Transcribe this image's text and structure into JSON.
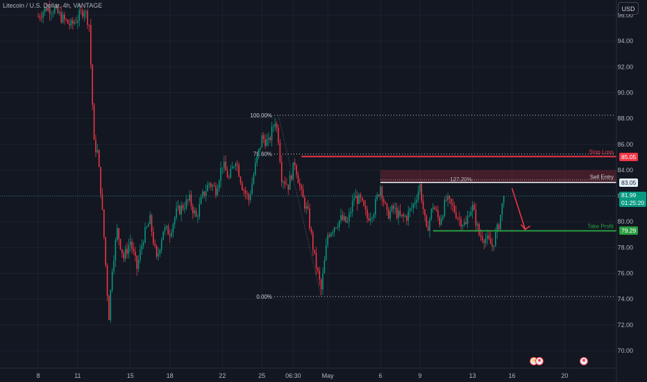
{
  "header": {
    "symbol_title": "Litecoin / U.S. Dollar, 4h, VANTAGE",
    "currency_button": "USD"
  },
  "price_tags": {
    "stop_loss": "85.05",
    "sell_entry": "83.05",
    "take_profit": "79.29",
    "last_price": "81.99",
    "countdown": "01:25:20"
  },
  "colors": {
    "background": "#131722",
    "bull_candle": "#089981",
    "bear_candle": "#f23645",
    "stop_loss": "#f23645",
    "entry": "#ffffff",
    "take_profit": "#2a9d3f",
    "grid": "#1e222d",
    "fib_dotted": "#d1d4dc"
  },
  "icons": {
    "time_event_1": "flash-icon",
    "time_event_2": "us-flag-icon",
    "time_event_3": "us-flag-icon"
  },
  "chart_data": {
    "type": "candlestick",
    "title": "Litecoin / U.S. Dollar, 4h, VANTAGE",
    "ylim": [
      69,
      97.5
    ],
    "y_ticks": [
      70,
      72,
      74,
      76,
      78,
      80,
      82,
      84,
      86,
      88,
      90,
      92,
      94,
      96
    ],
    "y_tick_labels": [
      "70.00",
      "72.00",
      "74.00",
      "76.00",
      "78.00",
      "80.00",
      "82.00",
      "84.00",
      "86.00",
      "88.00",
      "90.00",
      "92.00",
      "94.00",
      "96.00"
    ],
    "x_tick_labels": [
      "8",
      "11",
      "15",
      "18",
      "22",
      "25",
      "06:30",
      "May",
      "6",
      "9",
      "13",
      "16",
      "20"
    ],
    "x_tick_index": [
      0,
      24,
      56,
      80,
      112,
      136,
      155,
      176,
      208,
      232,
      264,
      288,
      320
    ],
    "bar_count": 294,
    "bars_per_day": 6,
    "price_path_anchors": [
      [
        0,
        95.9
      ],
      [
        5,
        96.6
      ],
      [
        10,
        96.4
      ],
      [
        15,
        95.7
      ],
      [
        20,
        95.2
      ],
      [
        24,
        95.8
      ],
      [
        28,
        96.5
      ],
      [
        31,
        95.3
      ],
      [
        34,
        86.0
      ],
      [
        36,
        85.4
      ],
      [
        38,
        82.5
      ],
      [
        40,
        78.8
      ],
      [
        42,
        74.5
      ],
      [
        43,
        72.7
      ],
      [
        45,
        76.5
      ],
      [
        48,
        79.3
      ],
      [
        52,
        77.2
      ],
      [
        56,
        78.5
      ],
      [
        60,
        76.4
      ],
      [
        64,
        78.8
      ],
      [
        68,
        80.1
      ],
      [
        72,
        77.0
      ],
      [
        76,
        79.4
      ],
      [
        80,
        79.2
      ],
      [
        84,
        80.7
      ],
      [
        88,
        81.2
      ],
      [
        92,
        81.7
      ],
      [
        96,
        80.3
      ],
      [
        100,
        82.0
      ],
      [
        104,
        83.0
      ],
      [
        108,
        82.5
      ],
      [
        112,
        84.5
      ],
      [
        116,
        83.3
      ],
      [
        120,
        84.9
      ],
      [
        124,
        82.8
      ],
      [
        128,
        81.7
      ],
      [
        132,
        84.3
      ],
      [
        136,
        86.5
      ],
      [
        140,
        86.1
      ],
      [
        144,
        87.9
      ],
      [
        146,
        86.5
      ],
      [
        148,
        83.5
      ],
      [
        152,
        82.8
      ],
      [
        156,
        84.6
      ],
      [
        160,
        82.1
      ],
      [
        164,
        80.6
      ],
      [
        168,
        77.2
      ],
      [
        172,
        74.7
      ],
      [
        176,
        79.0
      ],
      [
        180,
        79.7
      ],
      [
        184,
        80.2
      ],
      [
        188,
        79.9
      ],
      [
        192,
        81.9
      ],
      [
        196,
        81.6
      ],
      [
        200,
        80.3
      ],
      [
        204,
        80.9
      ],
      [
        208,
        82.8
      ],
      [
        212,
        80.5
      ],
      [
        216,
        81.0
      ],
      [
        220,
        80.3
      ],
      [
        224,
        80.4
      ],
      [
        228,
        81.3
      ],
      [
        232,
        82.8
      ],
      [
        236,
        79.2
      ],
      [
        240,
        81.3
      ],
      [
        244,
        80.0
      ],
      [
        248,
        81.7
      ],
      [
        252,
        81.1
      ],
      [
        256,
        80.2
      ],
      [
        260,
        79.7
      ],
      [
        262,
        80.9
      ],
      [
        264,
        81.1
      ],
      [
        268,
        79.0
      ],
      [
        272,
        78.7
      ],
      [
        276,
        78.1
      ],
      [
        280,
        79.8
      ],
      [
        283,
        81.99
      ]
    ],
    "annotations": {
      "fib_levels": [
        {
          "label": "100.00%",
          "value": 88.25
        },
        {
          "label": "78.60%",
          "value": 85.25
        },
        {
          "label": "0.00%",
          "value": 74.2
        }
      ],
      "fib_retrace_127": {
        "label": "127.20%",
        "value": 83.25
      },
      "stop_loss": {
        "label": "Stop Loss",
        "value": 85.05
      },
      "sell_entry": {
        "label": "Sell Entry",
        "value": 83.05
      },
      "take_profit": {
        "label": "Take Profit",
        "value": 79.29
      },
      "last_price": 81.99
    }
  }
}
